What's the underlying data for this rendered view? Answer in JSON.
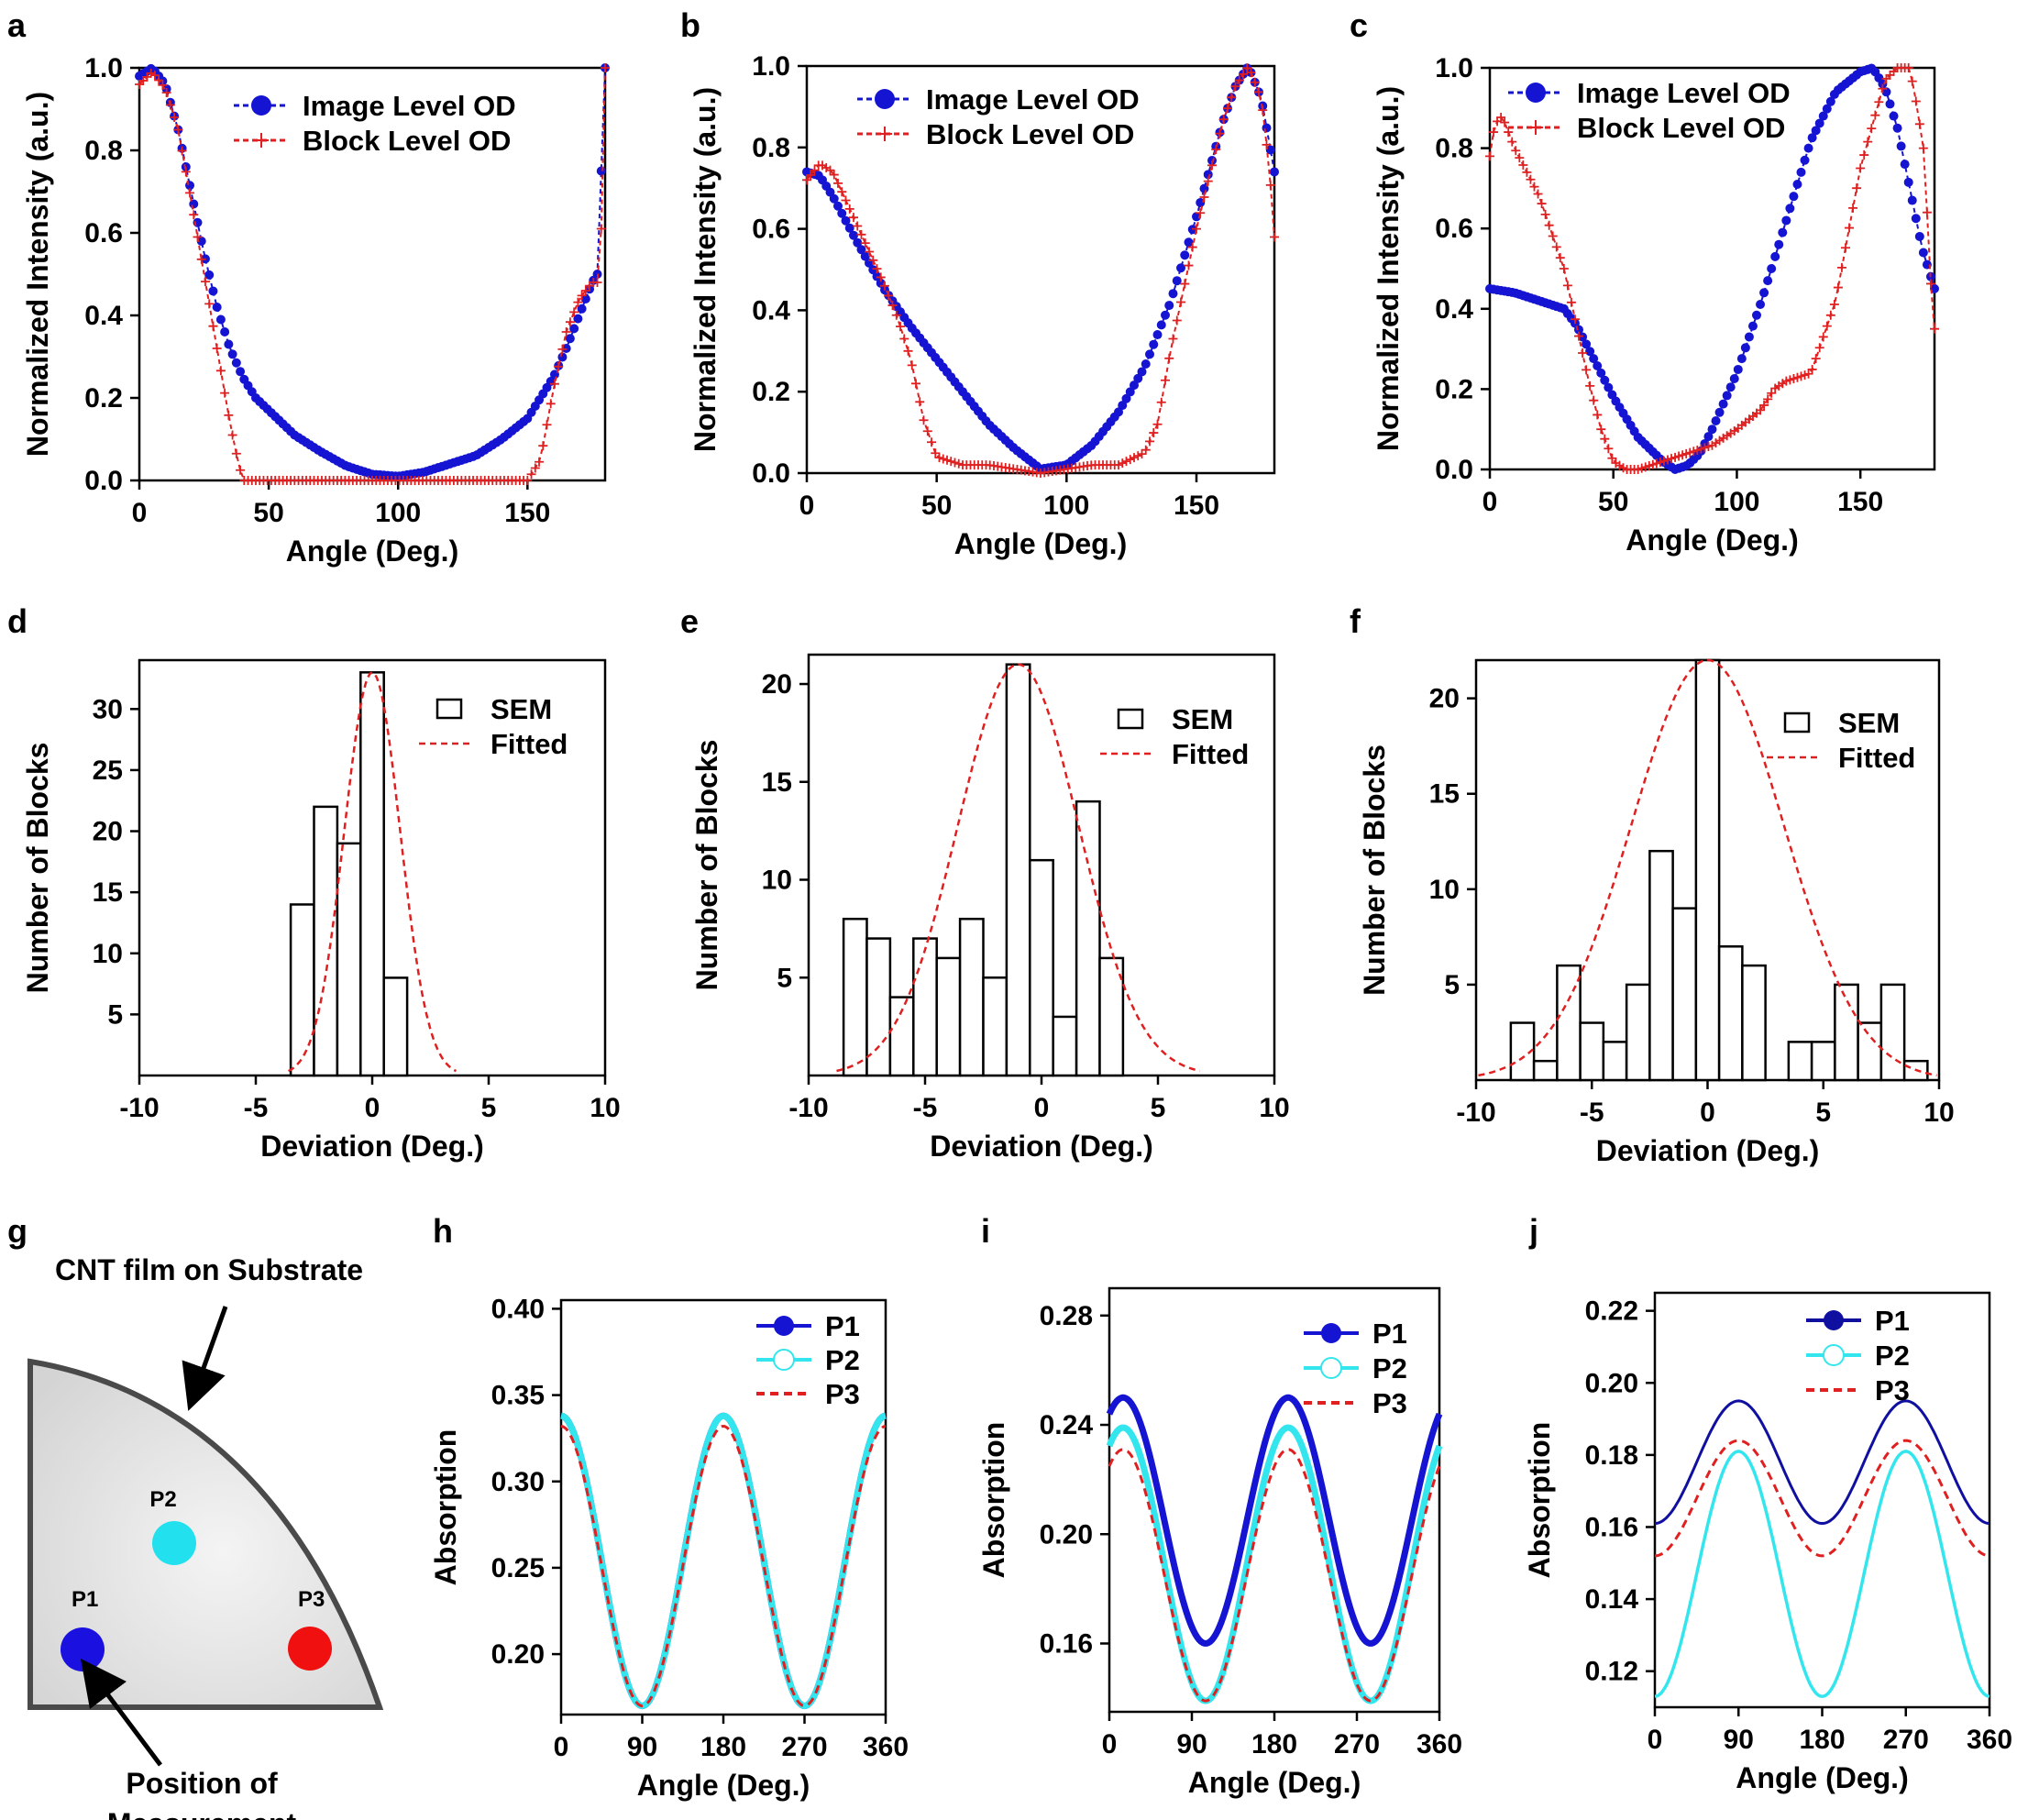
{
  "figure_title": "",
  "chart_data": [
    {
      "id": "a",
      "type": "scatter",
      "panel_label": "a",
      "xlabel": "Angle (Deg.)",
      "ylabel": "Normalized Intensity (a.u.)",
      "xlim": [
        0,
        180
      ],
      "ylim": [
        0,
        1
      ],
      "xticks": [
        0,
        50,
        100,
        150
      ],
      "yticks": [
        0.0,
        0.2,
        0.4,
        0.6,
        0.8,
        1.0
      ],
      "ytick_labels": [
        "0.0",
        "0.2",
        "0.4",
        "0.6",
        "0.8",
        "1.0"
      ],
      "legend": [
        "Image Level OD",
        "Block Level OD"
      ],
      "series": [
        {
          "name": "Image Level OD",
          "style": "blue-dots",
          "x": [
            0,
            5,
            10,
            15,
            20,
            25,
            30,
            35,
            40,
            45,
            50,
            55,
            60,
            70,
            80,
            90,
            100,
            110,
            120,
            130,
            140,
            150,
            160,
            165,
            170,
            175,
            177,
            180
          ],
          "y": [
            0.98,
            1.0,
            0.96,
            0.85,
            0.7,
            0.55,
            0.42,
            0.32,
            0.25,
            0.2,
            0.17,
            0.14,
            0.11,
            0.07,
            0.035,
            0.015,
            0.01,
            0.02,
            0.04,
            0.06,
            0.1,
            0.15,
            0.25,
            0.32,
            0.4,
            0.48,
            0.5,
            1.0
          ]
        },
        {
          "name": "Block Level OD",
          "style": "red-plus",
          "x": [
            0,
            5,
            10,
            15,
            20,
            25,
            30,
            35,
            38,
            40,
            45,
            50,
            150,
            155,
            160,
            165,
            170,
            175,
            178,
            180
          ],
          "y": [
            0.96,
            0.99,
            0.95,
            0.85,
            0.68,
            0.5,
            0.32,
            0.14,
            0.05,
            0.0,
            0.0,
            0.0,
            0.0,
            0.05,
            0.22,
            0.36,
            0.44,
            0.48,
            0.48,
            1.0
          ]
        }
      ]
    },
    {
      "id": "b",
      "type": "scatter",
      "panel_label": "b",
      "xlabel": "Angle (Deg.)",
      "ylabel": "Normalized Intensity (a.u.)",
      "xlim": [
        0,
        180
      ],
      "ylim": [
        0,
        1
      ],
      "xticks": [
        0,
        50,
        100,
        150
      ],
      "yticks": [
        0.0,
        0.2,
        0.4,
        0.6,
        0.8,
        1.0
      ],
      "ytick_labels": [
        "0.0",
        "0.2",
        "0.4",
        "0.6",
        "0.8",
        "1.0"
      ],
      "legend": [
        "Image Level OD",
        "Block Level OD"
      ],
      "series": [
        {
          "name": "Image Level OD",
          "style": "blue-dots",
          "x": [
            0,
            5,
            10,
            20,
            30,
            40,
            50,
            60,
            70,
            80,
            90,
            100,
            110,
            120,
            130,
            140,
            150,
            160,
            165,
            170,
            175,
            180
          ],
          "y": [
            0.74,
            0.73,
            0.68,
            0.56,
            0.45,
            0.36,
            0.28,
            0.2,
            0.12,
            0.06,
            0.01,
            0.02,
            0.07,
            0.15,
            0.26,
            0.42,
            0.63,
            0.86,
            0.95,
            1.0,
            0.92,
            0.74
          ]
        },
        {
          "name": "Block Level OD",
          "style": "red-plus",
          "x": [
            0,
            5,
            10,
            20,
            30,
            35,
            40,
            45,
            50,
            60,
            70,
            80,
            90,
            100,
            110,
            120,
            130,
            135,
            140,
            150,
            160,
            165,
            170,
            175,
            178,
            180
          ],
          "y": [
            0.72,
            0.76,
            0.74,
            0.6,
            0.46,
            0.38,
            0.28,
            0.13,
            0.04,
            0.02,
            0.02,
            0.01,
            0.0,
            0.01,
            0.02,
            0.02,
            0.05,
            0.12,
            0.3,
            0.6,
            0.86,
            0.95,
            1.0,
            0.92,
            0.75,
            0.58
          ]
        }
      ]
    },
    {
      "id": "c",
      "type": "scatter",
      "panel_label": "c",
      "xlabel": "Angle (Deg.)",
      "ylabel": "Normalized Intensity (a.u.)",
      "xlim": [
        0,
        180
      ],
      "ylim": [
        0,
        1
      ],
      "xticks": [
        0,
        50,
        100,
        150
      ],
      "yticks": [
        0.0,
        0.2,
        0.4,
        0.6,
        0.8,
        1.0
      ],
      "ytick_labels": [
        "0.0",
        "0.2",
        "0.4",
        "0.6",
        "0.8",
        "1.0"
      ],
      "legend": [
        "Image Level OD",
        "Block Level OD"
      ],
      "series": [
        {
          "name": "Image Level OD",
          "style": "blue-dots",
          "x": [
            0,
            10,
            20,
            30,
            35,
            40,
            50,
            60,
            70,
            75,
            80,
            85,
            90,
            100,
            110,
            120,
            130,
            140,
            150,
            155,
            160,
            165,
            170,
            175,
            180
          ],
          "y": [
            0.45,
            0.44,
            0.42,
            0.4,
            0.36,
            0.3,
            0.18,
            0.08,
            0.02,
            0.0,
            0.01,
            0.04,
            0.1,
            0.24,
            0.42,
            0.62,
            0.82,
            0.94,
            0.99,
            1.0,
            0.95,
            0.85,
            0.7,
            0.55,
            0.45
          ]
        },
        {
          "name": "Block Level OD",
          "style": "red-plus",
          "x": [
            0,
            2,
            5,
            10,
            20,
            30,
            35,
            40,
            45,
            50,
            55,
            60,
            70,
            80,
            90,
            100,
            110,
            115,
            120,
            130,
            140,
            150,
            160,
            165,
            170,
            173,
            176,
            178,
            180
          ],
          "y": [
            0.78,
            0.86,
            0.88,
            0.8,
            0.68,
            0.5,
            0.36,
            0.22,
            0.1,
            0.02,
            0.0,
            0.0,
            0.02,
            0.04,
            0.06,
            0.1,
            0.15,
            0.2,
            0.22,
            0.24,
            0.42,
            0.75,
            0.97,
            1.0,
            1.0,
            0.9,
            0.78,
            0.5,
            0.35
          ]
        }
      ]
    },
    {
      "id": "d",
      "type": "bar",
      "panel_label": "d",
      "xlabel": "Deviation (Deg.)",
      "ylabel": "Number of Blocks",
      "xlim": [
        -10,
        10
      ],
      "ylim": [
        0,
        34
      ],
      "xticks": [
        -10,
        -5,
        0,
        5,
        10
      ],
      "yticks": [
        5,
        10,
        15,
        20,
        25,
        30
      ],
      "legend": [
        "SEM",
        "Fitted"
      ],
      "bin_width": 1,
      "bin_centers": [
        -3,
        -2,
        -1,
        0,
        1
      ],
      "values": [
        14,
        22,
        19,
        33,
        8
      ],
      "fit": {
        "amplitude": 33,
        "mean": 0,
        "sigma": 1.2
      }
    },
    {
      "id": "e",
      "type": "bar",
      "panel_label": "e",
      "xlabel": "Deviation (Deg.)",
      "ylabel": "Number of Blocks",
      "xlim": [
        -10,
        10
      ],
      "ylim": [
        0,
        21.5
      ],
      "xticks": [
        -10,
        -5,
        0,
        5,
        10
      ],
      "yticks": [
        5,
        10,
        15,
        20
      ],
      "legend": [
        "SEM",
        "Fitted"
      ],
      "bin_width": 1,
      "bin_centers": [
        -8,
        -7,
        -6,
        -5,
        -4,
        -3,
        -2,
        -1,
        0,
        1,
        2,
        3
      ],
      "values": [
        8,
        7,
        4,
        7,
        6,
        8,
        5,
        21,
        11,
        3,
        14,
        6
      ],
      "fit": {
        "amplitude": 21,
        "mean": -1,
        "sigma": 2.6
      }
    },
    {
      "id": "f",
      "type": "bar",
      "panel_label": "f",
      "xlabel": "Deviation (Deg.)",
      "ylabel": "Number of Blocks",
      "xlim": [
        -10,
        10
      ],
      "ylim": [
        0,
        22
      ],
      "xticks": [
        -10,
        -5,
        0,
        5,
        10
      ],
      "yticks": [
        5,
        10,
        15,
        20
      ],
      "legend": [
        "SEM",
        "Fitted"
      ],
      "bin_width": 1,
      "bin_centers": [
        -8,
        -7,
        -6,
        -5,
        -4,
        -3,
        -2,
        -1,
        0,
        1,
        2,
        3,
        4,
        5,
        6,
        7,
        8,
        9
      ],
      "values": [
        3,
        1,
        6,
        3,
        2,
        5,
        12,
        9,
        22,
        7,
        6,
        0,
        2,
        2,
        5,
        3,
        5,
        1
      ],
      "fit": {
        "amplitude": 22,
        "mean": 0,
        "sigma": 3.3
      }
    },
    {
      "id": "h",
      "type": "line",
      "panel_label": "h",
      "xlabel": "Angle (Deg.)",
      "ylabel": "Absorption",
      "xlim": [
        0,
        360
      ],
      "ylim": [
        0.165,
        0.405
      ],
      "xticks": [
        0,
        90,
        180,
        270,
        360
      ],
      "yticks": [
        0.2,
        0.25,
        0.3,
        0.35,
        0.4
      ],
      "ytick_labels": [
        "0.20",
        "0.25",
        "0.30",
        "0.35",
        "0.40"
      ],
      "legend": [
        "P1",
        "P2",
        "P3"
      ],
      "series": [
        {
          "name": "P1",
          "mid": 0.254,
          "amp": 0.084,
          "peak_deg": 0
        },
        {
          "name": "P2",
          "mid": 0.254,
          "amp": 0.084,
          "peak_deg": 0
        },
        {
          "name": "P3",
          "mid": 0.251,
          "amp": 0.081,
          "peak_deg": 0
        }
      ]
    },
    {
      "id": "i",
      "type": "line",
      "panel_label": "i",
      "xlabel": "Angle (Deg.)",
      "ylabel": "Absorption",
      "xlim": [
        0,
        360
      ],
      "ylim": [
        0.135,
        0.29
      ],
      "xticks": [
        0,
        90,
        180,
        270,
        360
      ],
      "yticks": [
        0.16,
        0.2,
        0.24,
        0.28
      ],
      "ytick_labels": [
        "0.16",
        "0.20",
        "0.24",
        "0.28"
      ],
      "legend": [
        "P1",
        "P2",
        "P3"
      ],
      "series": [
        {
          "name": "P1",
          "mid": 0.205,
          "amp": 0.045,
          "peak_deg": 15
        },
        {
          "name": "P2",
          "mid": 0.189,
          "amp": 0.05,
          "peak_deg": 15
        },
        {
          "name": "P3",
          "mid": 0.185,
          "amp": 0.046,
          "peak_deg": 15
        }
      ]
    },
    {
      "id": "j",
      "type": "line",
      "panel_label": "j",
      "xlabel": "Angle (Deg.)",
      "ylabel": "Absorption",
      "xlim": [
        0,
        360
      ],
      "ylim": [
        0.11,
        0.225
      ],
      "xticks": [
        0,
        90,
        180,
        270,
        360
      ],
      "yticks": [
        0.12,
        0.14,
        0.16,
        0.18,
        0.2,
        0.22
      ],
      "ytick_labels": [
        "0.12",
        "0.14",
        "0.16",
        "0.18",
        "0.20",
        "0.22"
      ],
      "legend": [
        "P1",
        "P2",
        "P3"
      ],
      "series": [
        {
          "name": "P1",
          "mid": 0.178,
          "amp": 0.017,
          "peak_deg": 90
        },
        {
          "name": "P2",
          "mid": 0.147,
          "amp": 0.034,
          "peak_deg": 90
        },
        {
          "name": "P3",
          "mid": 0.168,
          "amp": 0.016,
          "peak_deg": 90
        }
      ]
    }
  ],
  "diagram_g": {
    "panel_label": "g",
    "title": "CNT film on Substrate",
    "points": [
      {
        "label": "P1",
        "color": "#1a10e0"
      },
      {
        "label": "P2",
        "color": "#22e0ee"
      },
      {
        "label": "P3",
        "color": "#f01010"
      }
    ],
    "caption_line1": "Position of",
    "caption_line2": "Measurement"
  },
  "colors": {
    "blue": "#1414d2",
    "red": "#e02020",
    "cyan": "#33e6ee",
    "navy": "#1010a0"
  }
}
